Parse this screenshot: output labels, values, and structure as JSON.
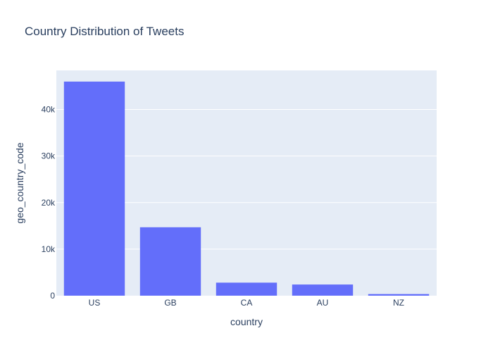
{
  "chart_data": {
    "type": "bar",
    "title": "Country Distribution of Tweets",
    "xlabel": "country",
    "ylabel": "geo_country_code",
    "categories": [
      "US",
      "GB",
      "CA",
      "AU",
      "NZ"
    ],
    "values": [
      46000,
      14700,
      2800,
      2400,
      350
    ],
    "ylim": [
      0,
      48400
    ],
    "y_ticks": [
      0,
      10000,
      20000,
      30000,
      40000
    ],
    "y_tick_labels": [
      "0",
      "10k",
      "20k",
      "30k",
      "40k"
    ],
    "grid": true,
    "colors": {
      "bar": "#636efa",
      "plot_background": "#e5ecf6",
      "gridline": "#ffffff",
      "text": "#2a3f5f"
    }
  }
}
